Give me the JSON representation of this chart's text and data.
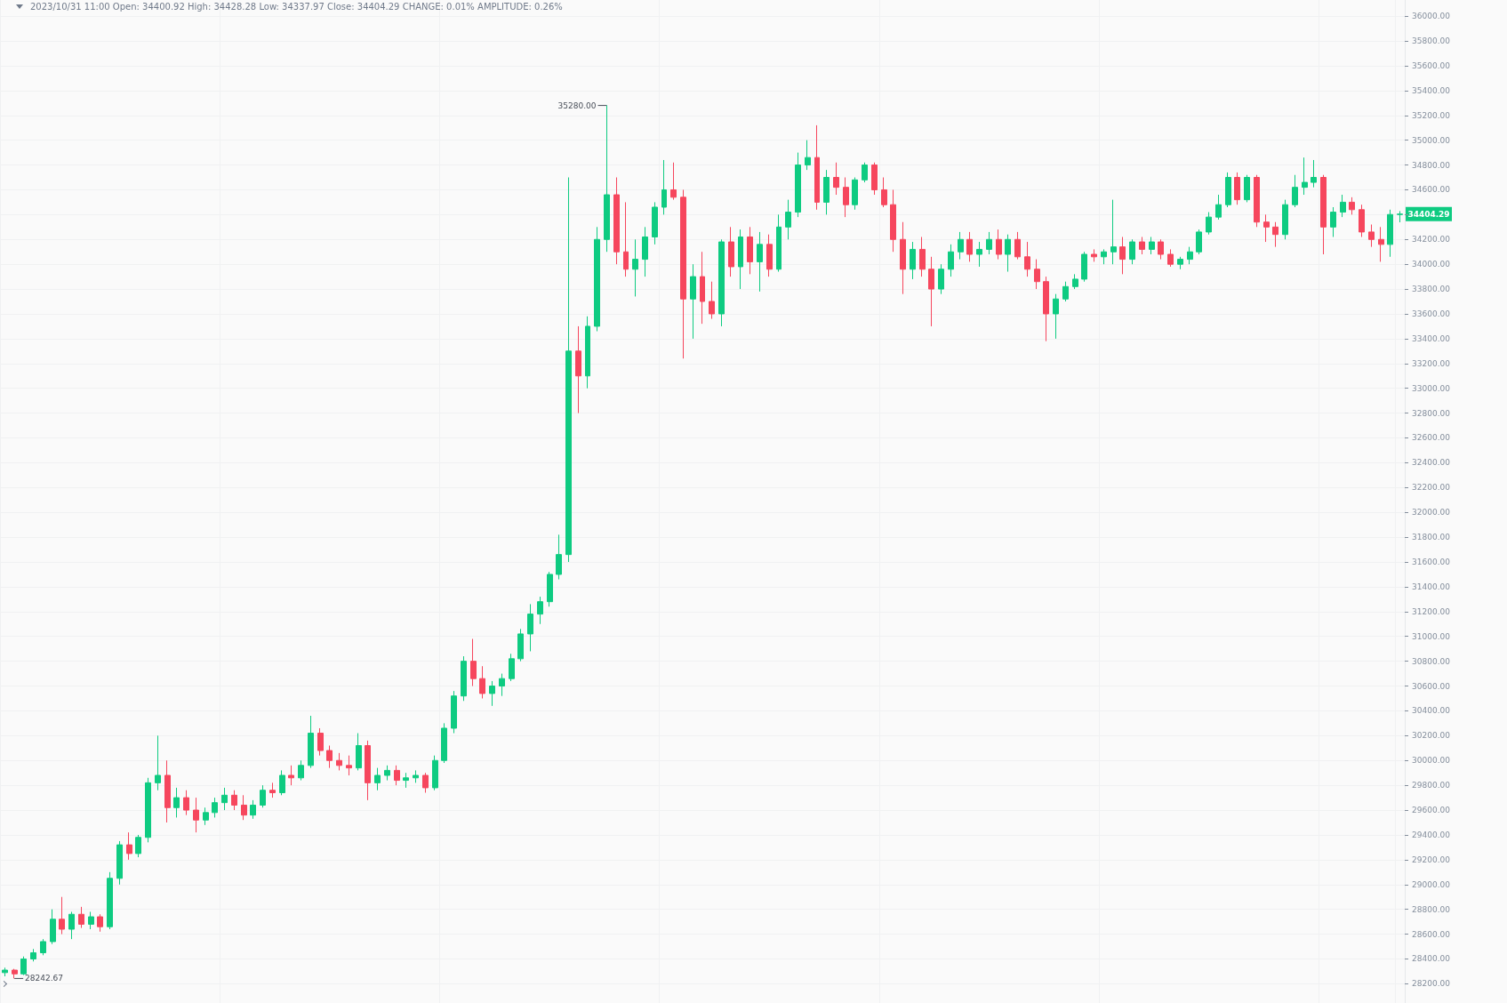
{
  "chart_data": {
    "type": "candlestick",
    "tick_labels": "y",
    "grid": true,
    "annotations": [
      "2023/10/31 11:00 Open: 34400.92 High: 34428.28 Low: 34337.97 Close: 34404.29 CHANGE: 0.01% AMPLITUDE: 0.26%",
      "35280.00",
      "28242.67",
      "34404.29"
    ],
    "ylim": [
      28045,
      36130
    ],
    "yticks": [
      {
        "value": 28200,
        "label": "28200.00"
      },
      {
        "value": 28400,
        "label": "28400.00"
      },
      {
        "value": 28600,
        "label": "28600.00"
      },
      {
        "value": 28800,
        "label": "28800.00"
      },
      {
        "value": 29000,
        "label": "29000.00"
      },
      {
        "value": 29200,
        "label": "29200.00"
      },
      {
        "value": 29400,
        "label": "29400.00"
      },
      {
        "value": 29600,
        "label": "29600.00"
      },
      {
        "value": 29800,
        "label": "29800.00"
      },
      {
        "value": 30000,
        "label": "30000.00"
      },
      {
        "value": 30200,
        "label": "30200.00"
      },
      {
        "value": 30400,
        "label": "30400.00"
      },
      {
        "value": 30600,
        "label": "30600.00"
      },
      {
        "value": 30800,
        "label": "30800.00"
      },
      {
        "value": 31000,
        "label": "31000.00"
      },
      {
        "value": 31200,
        "label": "31200.00"
      },
      {
        "value": 31400,
        "label": "31400.00"
      },
      {
        "value": 31600,
        "label": "31600.00"
      },
      {
        "value": 31800,
        "label": "31800.00"
      },
      {
        "value": 32000,
        "label": "32000.00"
      },
      {
        "value": 32200,
        "label": "32200.00"
      },
      {
        "value": 32400,
        "label": "32400.00"
      },
      {
        "value": 32600,
        "label": "32600.00"
      },
      {
        "value": 32800,
        "label": "32800.00"
      },
      {
        "value": 33000,
        "label": "33000.00"
      },
      {
        "value": 33200,
        "label": "33200.00"
      },
      {
        "value": 33400,
        "label": "33400.00"
      },
      {
        "value": 33600,
        "label": "33600.00"
      },
      {
        "value": 33800,
        "label": "33800.00"
      },
      {
        "value": 34000,
        "label": "34000.00"
      },
      {
        "value": 34200,
        "label": "34200.00"
      },
      {
        "value": 34400,
        "label": null
      },
      {
        "value": 34600,
        "label": "34600.00"
      },
      {
        "value": 34800,
        "label": "34800.00"
      },
      {
        "value": 35000,
        "label": "35000.00"
      },
      {
        "value": 35200,
        "label": "35200.00"
      },
      {
        "value": 35400,
        "label": "35400.00"
      },
      {
        "value": 35600,
        "label": "35600.00"
      },
      {
        "value": 35800,
        "label": "35800.00"
      },
      {
        "value": 36000,
        "label": "36000.00"
      }
    ],
    "categories": [
      null,
      null,
      null,
      null,
      null,
      null,
      null,
      null,
      null,
      null,
      null,
      null,
      null,
      null,
      null,
      null,
      null,
      null,
      null,
      null,
      null,
      null,
      null,
      null,
      null,
      null,
      null,
      null,
      null,
      null,
      null,
      null,
      null,
      null,
      null,
      null,
      null,
      null,
      null,
      null,
      null,
      null,
      null,
      null,
      null,
      null,
      null,
      null,
      null,
      null,
      null,
      null,
      null,
      null,
      null,
      null,
      null,
      null,
      null,
      null,
      null,
      null,
      null,
      null,
      null,
      null,
      null,
      null,
      null,
      null,
      null,
      null,
      null,
      null,
      null,
      null,
      null,
      null,
      null,
      null,
      null,
      null,
      null,
      null,
      null,
      null,
      null,
      null,
      null,
      null,
      null,
      null,
      null,
      null,
      null,
      null,
      null,
      null,
      null,
      null,
      null,
      null,
      null,
      null,
      null,
      null,
      null,
      null,
      null,
      null,
      null,
      null,
      null,
      null,
      null,
      null,
      null,
      null,
      null,
      null,
      null,
      null,
      null,
      null,
      null,
      null,
      null,
      null,
      null,
      null,
      null,
      null,
      null,
      null,
      null,
      null,
      null,
      null,
      null,
      null,
      null,
      null,
      null,
      null,
      null,
      null,
      null
    ],
    "ohlc": [
      [
        28290,
        28330,
        28260,
        28310
      ],
      [
        28310,
        28320,
        28242.67,
        28280
      ],
      [
        28280,
        28420,
        28270,
        28400
      ],
      [
        28400,
        28480,
        28380,
        28450
      ],
      [
        28450,
        28560,
        28430,
        28540
      ],
      [
        28540,
        28800,
        28520,
        28720
      ],
      [
        28720,
        28900,
        28600,
        28640
      ],
      [
        28640,
        28780,
        28560,
        28760
      ],
      [
        28760,
        28820,
        28650,
        28680
      ],
      [
        28680,
        28780,
        28640,
        28740
      ],
      [
        28740,
        28760,
        28620,
        28660
      ],
      [
        28660,
        29100,
        28640,
        29050
      ],
      [
        29050,
        29350,
        29000,
        29320
      ],
      [
        29320,
        29420,
        29200,
        29250
      ],
      [
        29250,
        29400,
        29220,
        29380
      ],
      [
        29380,
        29860,
        29340,
        29820
      ],
      [
        29820,
        30200,
        29760,
        29880
      ],
      [
        29880,
        30000,
        29500,
        29620
      ],
      [
        29620,
        29780,
        29540,
        29700
      ],
      [
        29700,
        29760,
        29560,
        29600
      ],
      [
        29600,
        29700,
        29420,
        29520
      ],
      [
        29520,
        29620,
        29480,
        29580
      ],
      [
        29580,
        29700,
        29540,
        29660
      ],
      [
        29660,
        29780,
        29600,
        29720
      ],
      [
        29720,
        29760,
        29600,
        29640
      ],
      [
        29640,
        29720,
        29520,
        29560
      ],
      [
        29560,
        29680,
        29530,
        29640
      ],
      [
        29640,
        29800,
        29620,
        29760
      ],
      [
        29760,
        29820,
        29700,
        29740
      ],
      [
        29740,
        29920,
        29720,
        29880
      ],
      [
        29880,
        29960,
        29800,
        29860
      ],
      [
        29860,
        30000,
        29840,
        29960
      ],
      [
        29960,
        30360,
        29940,
        30220
      ],
      [
        30220,
        30260,
        30040,
        30080
      ],
      [
        30080,
        30120,
        29940,
        30000
      ],
      [
        30000,
        30060,
        29920,
        29960
      ],
      [
        29960,
        30040,
        29880,
        29940
      ],
      [
        29940,
        30220,
        29920,
        30120
      ],
      [
        30120,
        30160,
        29680,
        29820
      ],
      [
        29820,
        29940,
        29760,
        29880
      ],
      [
        29880,
        29960,
        29840,
        29920
      ],
      [
        29920,
        29960,
        29800,
        29840
      ],
      [
        29840,
        29900,
        29780,
        29860
      ],
      [
        29860,
        29920,
        29820,
        29880
      ],
      [
        29880,
        29900,
        29740,
        29780
      ],
      [
        29780,
        30040,
        29760,
        30000
      ],
      [
        30000,
        30300,
        29980,
        30260
      ],
      [
        30260,
        30560,
        30220,
        30520
      ],
      [
        30520,
        30840,
        30480,
        30800
      ],
      [
        30800,
        30980,
        30600,
        30660
      ],
      [
        30660,
        30760,
        30500,
        30540
      ],
      [
        30540,
        30640,
        30440,
        30600
      ],
      [
        30600,
        30700,
        30520,
        30660
      ],
      [
        30660,
        30860,
        30640,
        30820
      ],
      [
        30820,
        31060,
        30800,
        31020
      ],
      [
        31020,
        31260,
        30880,
        31180
      ],
      [
        31180,
        31320,
        31100,
        31280
      ],
      [
        31280,
        31520,
        31240,
        31500
      ],
      [
        31500,
        31820,
        31460,
        31660
      ],
      [
        31660,
        34700,
        31600,
        33300
      ],
      [
        33300,
        33500,
        32800,
        33100
      ],
      [
        33100,
        33580,
        33000,
        33500
      ],
      [
        33500,
        34300,
        33460,
        34200
      ],
      [
        34200,
        35280,
        34100,
        34560
      ],
      [
        34560,
        34700,
        34000,
        34100
      ],
      [
        34100,
        34500,
        33900,
        33960
      ],
      [
        33960,
        34200,
        33740,
        34040
      ],
      [
        34040,
        34300,
        33900,
        34220
      ],
      [
        34220,
        34500,
        34160,
        34460
      ],
      [
        34460,
        34840,
        34400,
        34600
      ],
      [
        34600,
        34820,
        34520,
        34540
      ],
      [
        34540,
        34600,
        33240,
        33720
      ],
      [
        33720,
        34000,
        33400,
        33900
      ],
      [
        33900,
        34100,
        33520,
        33700
      ],
      [
        33700,
        33860,
        33560,
        33600
      ],
      [
        33600,
        34200,
        33500,
        34180
      ],
      [
        34180,
        34300,
        33900,
        33980
      ],
      [
        33980,
        34280,
        33800,
        34220
      ],
      [
        34220,
        34300,
        33920,
        34020
      ],
      [
        34020,
        34260,
        33780,
        34160
      ],
      [
        34160,
        34240,
        33900,
        33960
      ],
      [
        33960,
        34400,
        33940,
        34300
      ],
      [
        34300,
        34520,
        34200,
        34420
      ],
      [
        34420,
        34900,
        34380,
        34800
      ],
      [
        34800,
        35000,
        34760,
        34860
      ],
      [
        34860,
        35120,
        34440,
        34500
      ],
      [
        34500,
        34760,
        34400,
        34700
      ],
      [
        34700,
        34820,
        34560,
        34620
      ],
      [
        34620,
        34700,
        34380,
        34480
      ],
      [
        34480,
        34700,
        34440,
        34680
      ],
      [
        34680,
        34820,
        34660,
        34800
      ],
      [
        34800,
        34820,
        34560,
        34600
      ],
      [
        34600,
        34700,
        34460,
        34480
      ],
      [
        34480,
        34600,
        34100,
        34200
      ],
      [
        34200,
        34340,
        33760,
        33960
      ],
      [
        33960,
        34180,
        33880,
        34120
      ],
      [
        34120,
        34220,
        33900,
        33960
      ],
      [
        33960,
        34060,
        33500,
        33800
      ],
      [
        33800,
        34000,
        33760,
        33960
      ],
      [
        33960,
        34160,
        33900,
        34100
      ],
      [
        34100,
        34260,
        34040,
        34200
      ],
      [
        34200,
        34260,
        34020,
        34080
      ],
      [
        34080,
        34180,
        33980,
        34120
      ],
      [
        34120,
        34260,
        34080,
        34200
      ],
      [
        34200,
        34280,
        34040,
        34080
      ],
      [
        34080,
        34240,
        33940,
        34200
      ],
      [
        34200,
        34260,
        34040,
        34060
      ],
      [
        34060,
        34180,
        33900,
        33960
      ],
      [
        33960,
        34040,
        33800,
        33860
      ],
      [
        33860,
        33900,
        33380,
        33600
      ],
      [
        33600,
        33760,
        33400,
        33720
      ],
      [
        33720,
        33860,
        33700,
        33820
      ],
      [
        33820,
        33920,
        33800,
        33880
      ],
      [
        33880,
        34100,
        33860,
        34080
      ],
      [
        34080,
        34120,
        34020,
        34060
      ],
      [
        34060,
        34120,
        34000,
        34100
      ],
      [
        34100,
        34520,
        34000,
        34140
      ],
      [
        34140,
        34220,
        33920,
        34040
      ],
      [
        34040,
        34200,
        34000,
        34180
      ],
      [
        34180,
        34220,
        34080,
        34120
      ],
      [
        34120,
        34220,
        34080,
        34180
      ],
      [
        34180,
        34200,
        34040,
        34080
      ],
      [
        34080,
        34120,
        33980,
        34000
      ],
      [
        34000,
        34060,
        33960,
        34040
      ],
      [
        34040,
        34140,
        34000,
        34100
      ],
      [
        34100,
        34280,
        34080,
        34260
      ],
      [
        34260,
        34420,
        34240,
        34380
      ],
      [
        34380,
        34560,
        34360,
        34480
      ],
      [
        34480,
        34740,
        34460,
        34700
      ],
      [
        34700,
        34740,
        34480,
        34520
      ],
      [
        34520,
        34720,
        34500,
        34700
      ],
      [
        34700,
        34720,
        34300,
        34340
      ],
      [
        34340,
        34400,
        34180,
        34300
      ],
      [
        34300,
        34340,
        34140,
        34240
      ],
      [
        34240,
        34520,
        34200,
        34480
      ],
      [
        34480,
        34720,
        34460,
        34620
      ],
      [
        34620,
        34860,
        34560,
        34660
      ],
      [
        34660,
        34840,
        34620,
        34700
      ],
      [
        34700,
        34720,
        34080,
        34300
      ],
      [
        34300,
        34460,
        34220,
        34420
      ],
      [
        34420,
        34560,
        34380,
        34500
      ],
      [
        34500,
        34540,
        34400,
        34440
      ],
      [
        34440,
        34480,
        34220,
        34260
      ],
      [
        34260,
        34320,
        34140,
        34200
      ],
      [
        34200,
        34300,
        34020,
        34160
      ],
      [
        34160,
        34440,
        34060,
        34400.92
      ],
      [
        34400.92,
        34428.28,
        34337.97,
        34404.29
      ]
    ],
    "colors": [
      "#0ecb81",
      "#f6465d",
      "#0ecb81",
      "#0ecb81",
      "#0ecb81",
      "#0ecb81",
      "#f6465d",
      "#0ecb81",
      "#f6465d",
      "#0ecb81",
      "#f6465d",
      "#0ecb81",
      "#0ecb81",
      "#f6465d",
      "#0ecb81",
      "#0ecb81",
      "#0ecb81",
      "#f6465d",
      "#0ecb81",
      "#f6465d",
      "#f6465d",
      "#0ecb81",
      "#0ecb81",
      "#0ecb81",
      "#f6465d",
      "#f6465d",
      "#0ecb81",
      "#0ecb81",
      "#f6465d",
      "#0ecb81",
      "#f6465d",
      "#0ecb81",
      "#0ecb81",
      "#f6465d",
      "#f6465d",
      "#f6465d",
      "#f6465d",
      "#0ecb81",
      "#f6465d",
      "#0ecb81",
      "#0ecb81",
      "#f6465d",
      "#0ecb81",
      "#0ecb81",
      "#f6465d",
      "#0ecb81",
      "#0ecb81",
      "#0ecb81",
      "#0ecb81",
      "#f6465d",
      "#f6465d",
      "#0ecb81",
      "#0ecb81",
      "#0ecb81",
      "#0ecb81",
      "#0ecb81",
      "#0ecb81",
      "#0ecb81",
      "#0ecb81",
      "#0ecb81",
      "#f6465d",
      "#0ecb81",
      "#0ecb81",
      "#0ecb81",
      "#f6465d",
      "#f6465d",
      "#0ecb81",
      "#0ecb81",
      "#0ecb81",
      "#0ecb81",
      "#f6465d",
      "#f6465d",
      "#0ecb81",
      "#f6465d",
      "#f6465d",
      "#0ecb81",
      "#f6465d",
      "#0ecb81",
      "#f6465d",
      "#0ecb81",
      "#f6465d",
      "#0ecb81",
      "#0ecb81",
      "#0ecb81",
      "#0ecb81",
      "#f6465d",
      "#0ecb81",
      "#f6465d",
      "#f6465d",
      "#0ecb81",
      "#0ecb81",
      "#f6465d",
      "#f6465d",
      "#f6465d",
      "#f6465d",
      "#0ecb81",
      "#f6465d",
      "#f6465d",
      "#0ecb81",
      "#0ecb81",
      "#0ecb81",
      "#f6465d",
      "#0ecb81",
      "#0ecb81",
      "#f6465d",
      "#0ecb81",
      "#f6465d",
      "#f6465d",
      "#f6465d",
      "#f6465d",
      "#0ecb81",
      "#0ecb81",
      "#0ecb81",
      "#0ecb81",
      "#f6465d",
      "#0ecb81",
      "#0ecb81",
      "#f6465d",
      "#0ecb81",
      "#f6465d",
      "#0ecb81",
      "#f6465d",
      "#f6465d",
      "#0ecb81",
      "#0ecb81",
      "#0ecb81",
      "#0ecb81",
      "#0ecb81",
      "#0ecb81",
      "#f6465d",
      "#0ecb81",
      "#f6465d",
      "#f6465d",
      "#f6465d",
      "#0ecb81",
      "#0ecb81",
      "#0ecb81",
      "#0ecb81",
      "#f6465d",
      "#0ecb81",
      "#0ecb81",
      "#f6465d",
      "#f6465d",
      "#f6465d",
      "#f6465d",
      "#0ecb81",
      "#0ecb81"
    ]
  }
}
